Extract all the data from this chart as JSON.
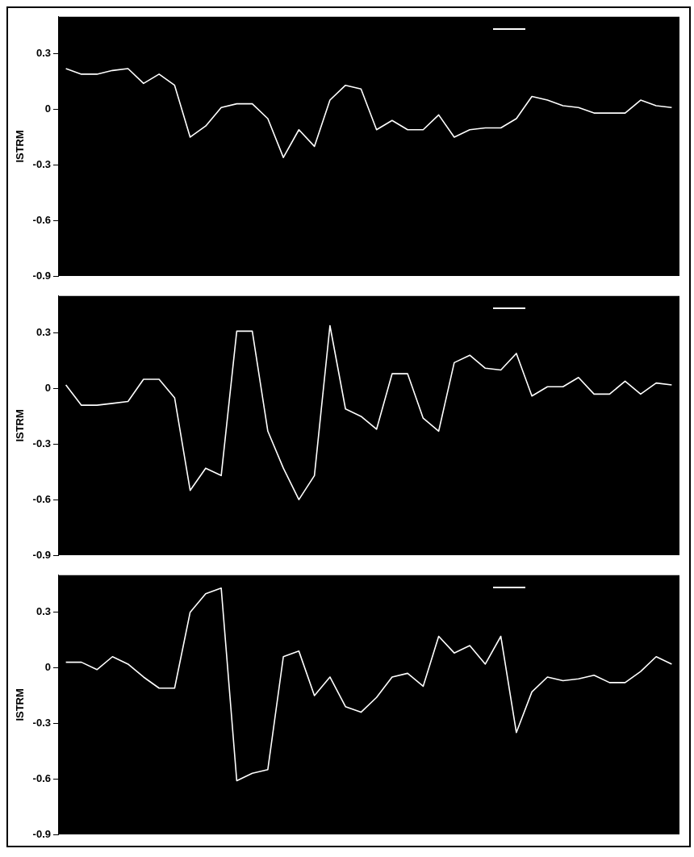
{
  "chart_data": [
    {
      "type": "line",
      "ylabel": "ISTRM",
      "categories": [
        null,
        null,
        null,
        null,
        null,
        null,
        null,
        null,
        null,
        null,
        null,
        null,
        null,
        null,
        null,
        null,
        null,
        null,
        null,
        null,
        null,
        null,
        null,
        null,
        null,
        null,
        null,
        null,
        null,
        null,
        null,
        null,
        null,
        null,
        null,
        null,
        null,
        null,
        null,
        null
      ],
      "series": [
        {
          "color": "#ffffff",
          "values": [
            0.22,
            0.19,
            0.19,
            0.21,
            0.22,
            0.14,
            0.19,
            0.13,
            -0.15,
            -0.09,
            0.01,
            0.03,
            0.03,
            -0.05,
            -0.26,
            -0.11,
            -0.2,
            0.05,
            0.13,
            0.11,
            -0.11,
            -0.06,
            -0.11,
            -0.11,
            -0.03,
            -0.15,
            -0.11,
            -0.1,
            -0.1,
            -0.05,
            0.07,
            0.05,
            0.02,
            0.01,
            -0.02,
            -0.02,
            -0.02,
            0.05,
            0.02,
            0.01
          ]
        }
      ],
      "ylim": [
        -0.9,
        0.5
      ],
      "yticks": [
        -0.9,
        -0.6,
        -0.3,
        0,
        0.3
      ],
      "tick_labels": "y",
      "marker": "none",
      "line_style": "solid"
    },
    {
      "type": "line",
      "ylabel": "ISTRM",
      "categories": [
        null,
        null,
        null,
        null,
        null,
        null,
        null,
        null,
        null,
        null,
        null,
        null,
        null,
        null,
        null,
        null,
        null,
        null,
        null,
        null,
        null,
        null,
        null,
        null,
        null,
        null,
        null,
        null,
        null,
        null,
        null,
        null,
        null,
        null,
        null,
        null,
        null,
        null,
        null,
        null
      ],
      "series": [
        {
          "color": "#ffffff",
          "values": [
            0.02,
            -0.09,
            -0.09,
            -0.08,
            -0.07,
            0.05,
            0.05,
            -0.05,
            -0.55,
            -0.43,
            -0.47,
            0.31,
            0.31,
            -0.23,
            -0.43,
            -0.6,
            -0.47,
            0.34,
            -0.11,
            -0.15,
            -0.22,
            0.08,
            0.08,
            -0.16,
            -0.23,
            0.14,
            0.18,
            0.11,
            0.1,
            0.19,
            -0.04,
            0.01,
            0.01,
            0.06,
            -0.03,
            -0.03,
            0.04,
            -0.03,
            0.03,
            0.02
          ]
        }
      ],
      "ylim": [
        -0.9,
        0.5
      ],
      "yticks": [
        -0.9,
        -0.6,
        -0.3,
        0,
        0.3
      ],
      "tick_labels": "y",
      "marker": "none",
      "line_style": "solid"
    },
    {
      "type": "line",
      "ylabel": "ISTRM",
      "categories": [
        null,
        null,
        null,
        null,
        null,
        null,
        null,
        null,
        null,
        null,
        null,
        null,
        null,
        null,
        null,
        null,
        null,
        null,
        null,
        null,
        null,
        null,
        null,
        null,
        null,
        null,
        null,
        null,
        null,
        null,
        null,
        null,
        null,
        null,
        null,
        null,
        null,
        null,
        null,
        null
      ],
      "series": [
        {
          "color": "#ffffff",
          "values": [
            0.03,
            0.03,
            -0.01,
            0.06,
            0.02,
            -0.05,
            -0.11,
            -0.11,
            0.3,
            0.4,
            0.43,
            -0.61,
            -0.57,
            -0.55,
            0.06,
            0.09,
            -0.15,
            -0.05,
            -0.21,
            -0.24,
            -0.16,
            -0.05,
            -0.03,
            -0.1,
            0.17,
            0.08,
            0.12,
            0.02,
            0.17,
            -0.35,
            -0.13,
            -0.05,
            -0.07,
            -0.06,
            -0.04,
            -0.08,
            -0.08,
            -0.02,
            0.06,
            0.02
          ]
        }
      ],
      "ylim": [
        -0.9,
        0.5
      ],
      "yticks": [
        -0.9,
        -0.6,
        -0.3,
        0,
        0.3
      ],
      "tick_labels": "y",
      "marker": "none",
      "line_style": "solid"
    }
  ]
}
